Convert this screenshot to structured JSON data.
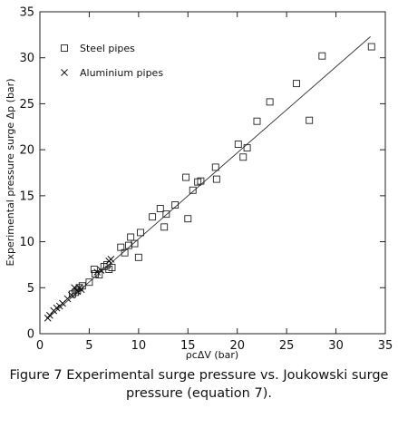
{
  "chart_data": {
    "type": "scatter",
    "title": "",
    "xlabel": "ρcΔV  (bar)",
    "ylabel": "Experimental pressure surge Δp  (bar)",
    "xlim": [
      0,
      35
    ],
    "ylim": [
      0,
      35
    ],
    "x_ticks": [
      "0",
      "5",
      "10",
      "15",
      "20",
      "25",
      "30",
      "35"
    ],
    "y_ticks": [
      "0",
      "5",
      "10",
      "15",
      "20",
      "25",
      "30",
      "35"
    ],
    "grid": false,
    "legend_position": "top-left",
    "series": [
      {
        "name": "Steel pipes",
        "marker": "square",
        "points": [
          [
            3.3,
            4.3
          ],
          [
            3.6,
            4.5
          ],
          [
            3.8,
            4.7
          ],
          [
            4.0,
            5.0
          ],
          [
            4.3,
            5.2
          ],
          [
            5.0,
            5.6
          ],
          [
            5.5,
            7.0
          ],
          [
            5.6,
            6.5
          ],
          [
            6.0,
            6.4
          ],
          [
            6.5,
            7.3
          ],
          [
            6.8,
            7.5
          ],
          [
            7.0,
            7.0
          ],
          [
            7.3,
            7.2
          ],
          [
            8.2,
            9.4
          ],
          [
            8.6,
            8.8
          ],
          [
            9.0,
            9.6
          ],
          [
            9.2,
            10.5
          ],
          [
            9.6,
            9.8
          ],
          [
            10.0,
            8.3
          ],
          [
            10.2,
            11.0
          ],
          [
            11.4,
            12.7
          ],
          [
            12.2,
            13.6
          ],
          [
            12.6,
            11.6
          ],
          [
            12.8,
            13.0
          ],
          [
            13.7,
            14.0
          ],
          [
            14.8,
            17.0
          ],
          [
            15.0,
            12.5
          ],
          [
            15.5,
            15.6
          ],
          [
            16.0,
            16.5
          ],
          [
            16.3,
            16.6
          ],
          [
            17.8,
            18.1
          ],
          [
            17.9,
            16.8
          ],
          [
            20.1,
            20.6
          ],
          [
            20.6,
            19.2
          ],
          [
            21.0,
            20.2
          ],
          [
            22.0,
            23.1
          ],
          [
            23.3,
            25.2
          ],
          [
            26.0,
            27.2
          ],
          [
            27.3,
            23.2
          ],
          [
            28.6,
            30.2
          ],
          [
            33.6,
            31.2
          ]
        ]
      },
      {
        "name": "Aluminium pipes",
        "marker": "cross",
        "points": [
          [
            0.8,
            1.7
          ],
          [
            1.0,
            2.0
          ],
          [
            1.4,
            2.5
          ],
          [
            1.7,
            2.8
          ],
          [
            2.0,
            3.0
          ],
          [
            2.3,
            3.3
          ],
          [
            2.8,
            3.8
          ],
          [
            3.2,
            4.2
          ],
          [
            3.5,
            5.0
          ],
          [
            3.8,
            4.6
          ],
          [
            4.0,
            5.0
          ],
          [
            4.2,
            4.8
          ],
          [
            5.8,
            6.7
          ],
          [
            6.2,
            6.9
          ],
          [
            7.0,
            7.9
          ],
          [
            7.2,
            8.1
          ]
        ]
      }
    ],
    "fit_line": {
      "x": [
        0.7,
        33.5
      ],
      "y": [
        1.6,
        32.3
      ]
    }
  },
  "caption": {
    "line1": "Figure 7 Experimental surge pressure vs.  Joukowski surge",
    "line2": "pressure (equation 7)."
  }
}
